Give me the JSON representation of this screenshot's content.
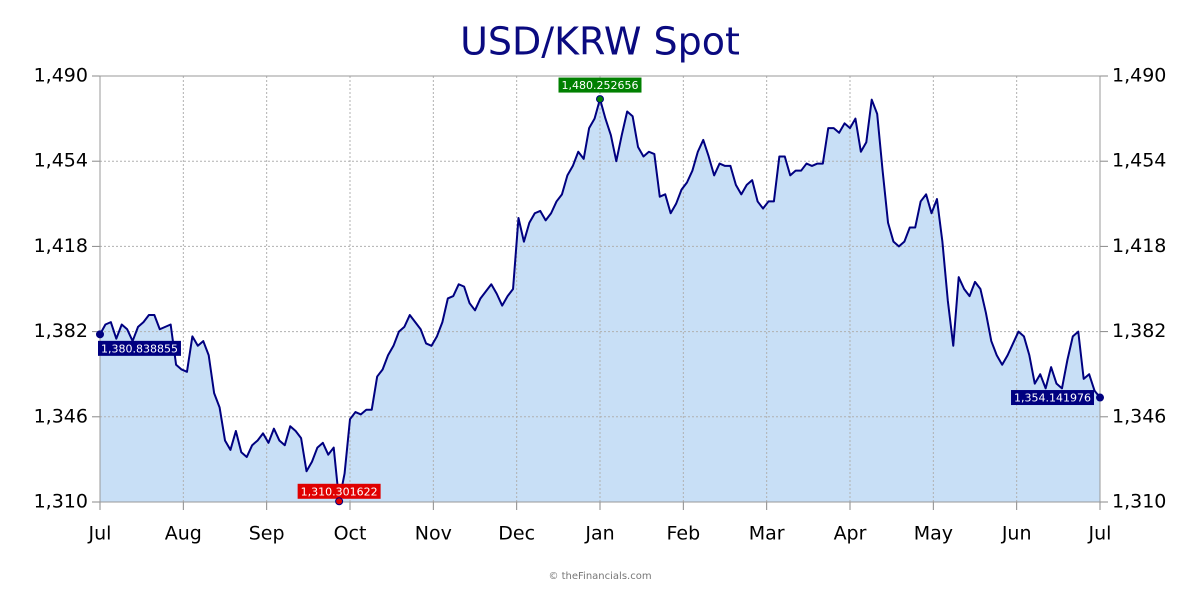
{
  "chart_data": {
    "type": "area",
    "title": "USD/KRW Spot",
    "source": "© theFinancials.com",
    "xticks": [
      "Jul",
      "Aug",
      "Sep",
      "Oct",
      "Nov",
      "Dec",
      "Jan",
      "Feb",
      "Mar",
      "Apr",
      "May",
      "Jun",
      "Jul"
    ],
    "values": [
      1380.838855,
      1385,
      1386,
      1379,
      1385,
      1383,
      1378,
      1384,
      1386,
      1389,
      1389,
      1383,
      1384,
      1385,
      1368,
      1366,
      1365,
      1380,
      1376,
      1378,
      1372,
      1356,
      1350,
      1336,
      1332,
      1340,
      1331,
      1329,
      1334,
      1336,
      1339,
      1335,
      1341,
      1336,
      1334,
      1342,
      1340,
      1337,
      1323,
      1327,
      1333,
      1335,
      1330,
      1333,
      1310.301622,
      1322,
      1345,
      1348,
      1347,
      1349,
      1349,
      1363,
      1366,
      1372,
      1376,
      1382,
      1384,
      1389,
      1386,
      1383,
      1377,
      1376,
      1380,
      1386,
      1396,
      1397,
      1402,
      1401,
      1394,
      1391,
      1396,
      1399,
      1402,
      1398,
      1393,
      1397,
      1400,
      1430,
      1420,
      1428,
      1432,
      1433,
      1429,
      1432,
      1437,
      1440,
      1448,
      1452,
      1458,
      1455,
      1468,
      1472,
      1480.252656,
      1472,
      1465,
      1454,
      1465,
      1475,
      1473,
      1460,
      1456,
      1458,
      1457,
      1439,
      1440,
      1432,
      1436,
      1442,
      1445,
      1450,
      1458,
      1463,
      1456,
      1448,
      1453,
      1452,
      1452,
      1444,
      1440,
      1444,
      1446,
      1437,
      1434,
      1437,
      1437,
      1456,
      1456,
      1448,
      1450,
      1450,
      1453,
      1452,
      1453,
      1453,
      1468,
      1468,
      1466,
      1470,
      1468,
      1472,
      1458,
      1462,
      1480,
      1474,
      1450,
      1428,
      1420,
      1418,
      1420,
      1426,
      1426,
      1437,
      1440,
      1432,
      1438,
      1420,
      1395,
      1376,
      1405,
      1400,
      1397,
      1403,
      1400,
      1390,
      1378,
      1372,
      1368,
      1372,
      1377,
      1382,
      1380,
      1372,
      1360,
      1364,
      1358,
      1367,
      1360,
      1358,
      1370,
      1380,
      1382,
      1362,
      1364,
      1357,
      1354.141976
    ],
    "color": "#000080",
    "fill": "#c8dff6",
    "ylim": [
      1310,
      1490
    ],
    "yticks": [
      {
        "value": 1310,
        "label": "1,310"
      },
      {
        "value": 1346,
        "label": "1,346"
      },
      {
        "value": 1382,
        "label": "1,382"
      },
      {
        "value": 1418,
        "label": "1,418"
      },
      {
        "value": 1454,
        "label": "1,454"
      },
      {
        "value": 1490,
        "label": "1,490"
      }
    ],
    "grid": true,
    "annotations": [
      {
        "label": "1,380.838855",
        "value": 1380.838855,
        "color": "#000080"
      },
      {
        "label": "1,480.252656",
        "value": 1480.252656,
        "color": "#008000"
      },
      {
        "label": "1,310.301622",
        "value": 1310.301622,
        "color": "#e00000"
      },
      {
        "label": "1,354.141976",
        "value": 1354.141976,
        "color": "#000080"
      }
    ]
  }
}
